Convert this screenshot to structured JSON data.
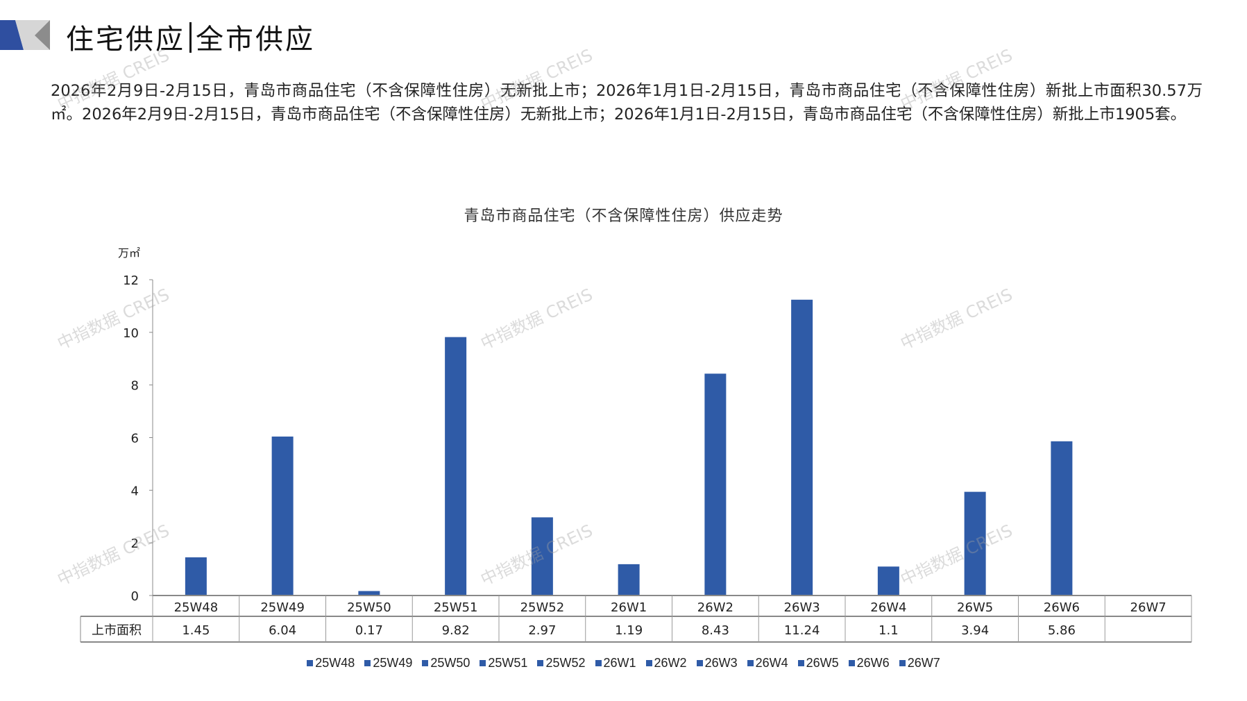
{
  "header": {
    "title_left": "住宅供应",
    "title_right": "全市供应"
  },
  "paragraph": "2026年2月9日-2月15日，青岛市商品住宅（不含保障性住房）无新批上市；2026年1月1日-2月15日，青岛市商品住宅（不含保障性住房）新批上市面积30.57万㎡。2026年2月9日-2月15日，青岛市商品住宅（不含保障性住房）无新批上市；2026年1月1日-2月15日，青岛市商品住宅（不含保障性住房）新批上市1905套。",
  "watermark": "中指数据 CREIS",
  "chart_data": {
    "type": "bar",
    "title": "青岛市商品住宅（不含保障性住房）供应走势",
    "ylabel": "万㎡",
    "ylim": [
      0,
      12
    ],
    "yticks": [
      0,
      2,
      4,
      6,
      8,
      10,
      12
    ],
    "categories": [
      "25W48",
      "25W49",
      "25W50",
      "25W51",
      "25W52",
      "26W1",
      "26W2",
      "26W3",
      "26W4",
      "26W5",
      "26W6",
      "26W7"
    ],
    "series": [
      {
        "name": "上市面积",
        "values": [
          1.45,
          6.04,
          0.17,
          9.82,
          2.97,
          1.19,
          8.43,
          11.24,
          1.1,
          3.94,
          5.86,
          null
        ]
      }
    ],
    "value_labels": [
      "1.45",
      "6.04",
      "0.17",
      "9.82",
      "2.97",
      "1.19",
      "8.43",
      "11.24",
      "1.1",
      "3.94",
      "5.86",
      ""
    ],
    "legend": [
      "25W48",
      "25W49",
      "25W50",
      "25W51",
      "25W52",
      "26W1",
      "26W2",
      "26W3",
      "26W4",
      "26W5",
      "26W6",
      "26W7"
    ],
    "legend_position": "bottom",
    "bar_color": "#2f5ba7"
  }
}
